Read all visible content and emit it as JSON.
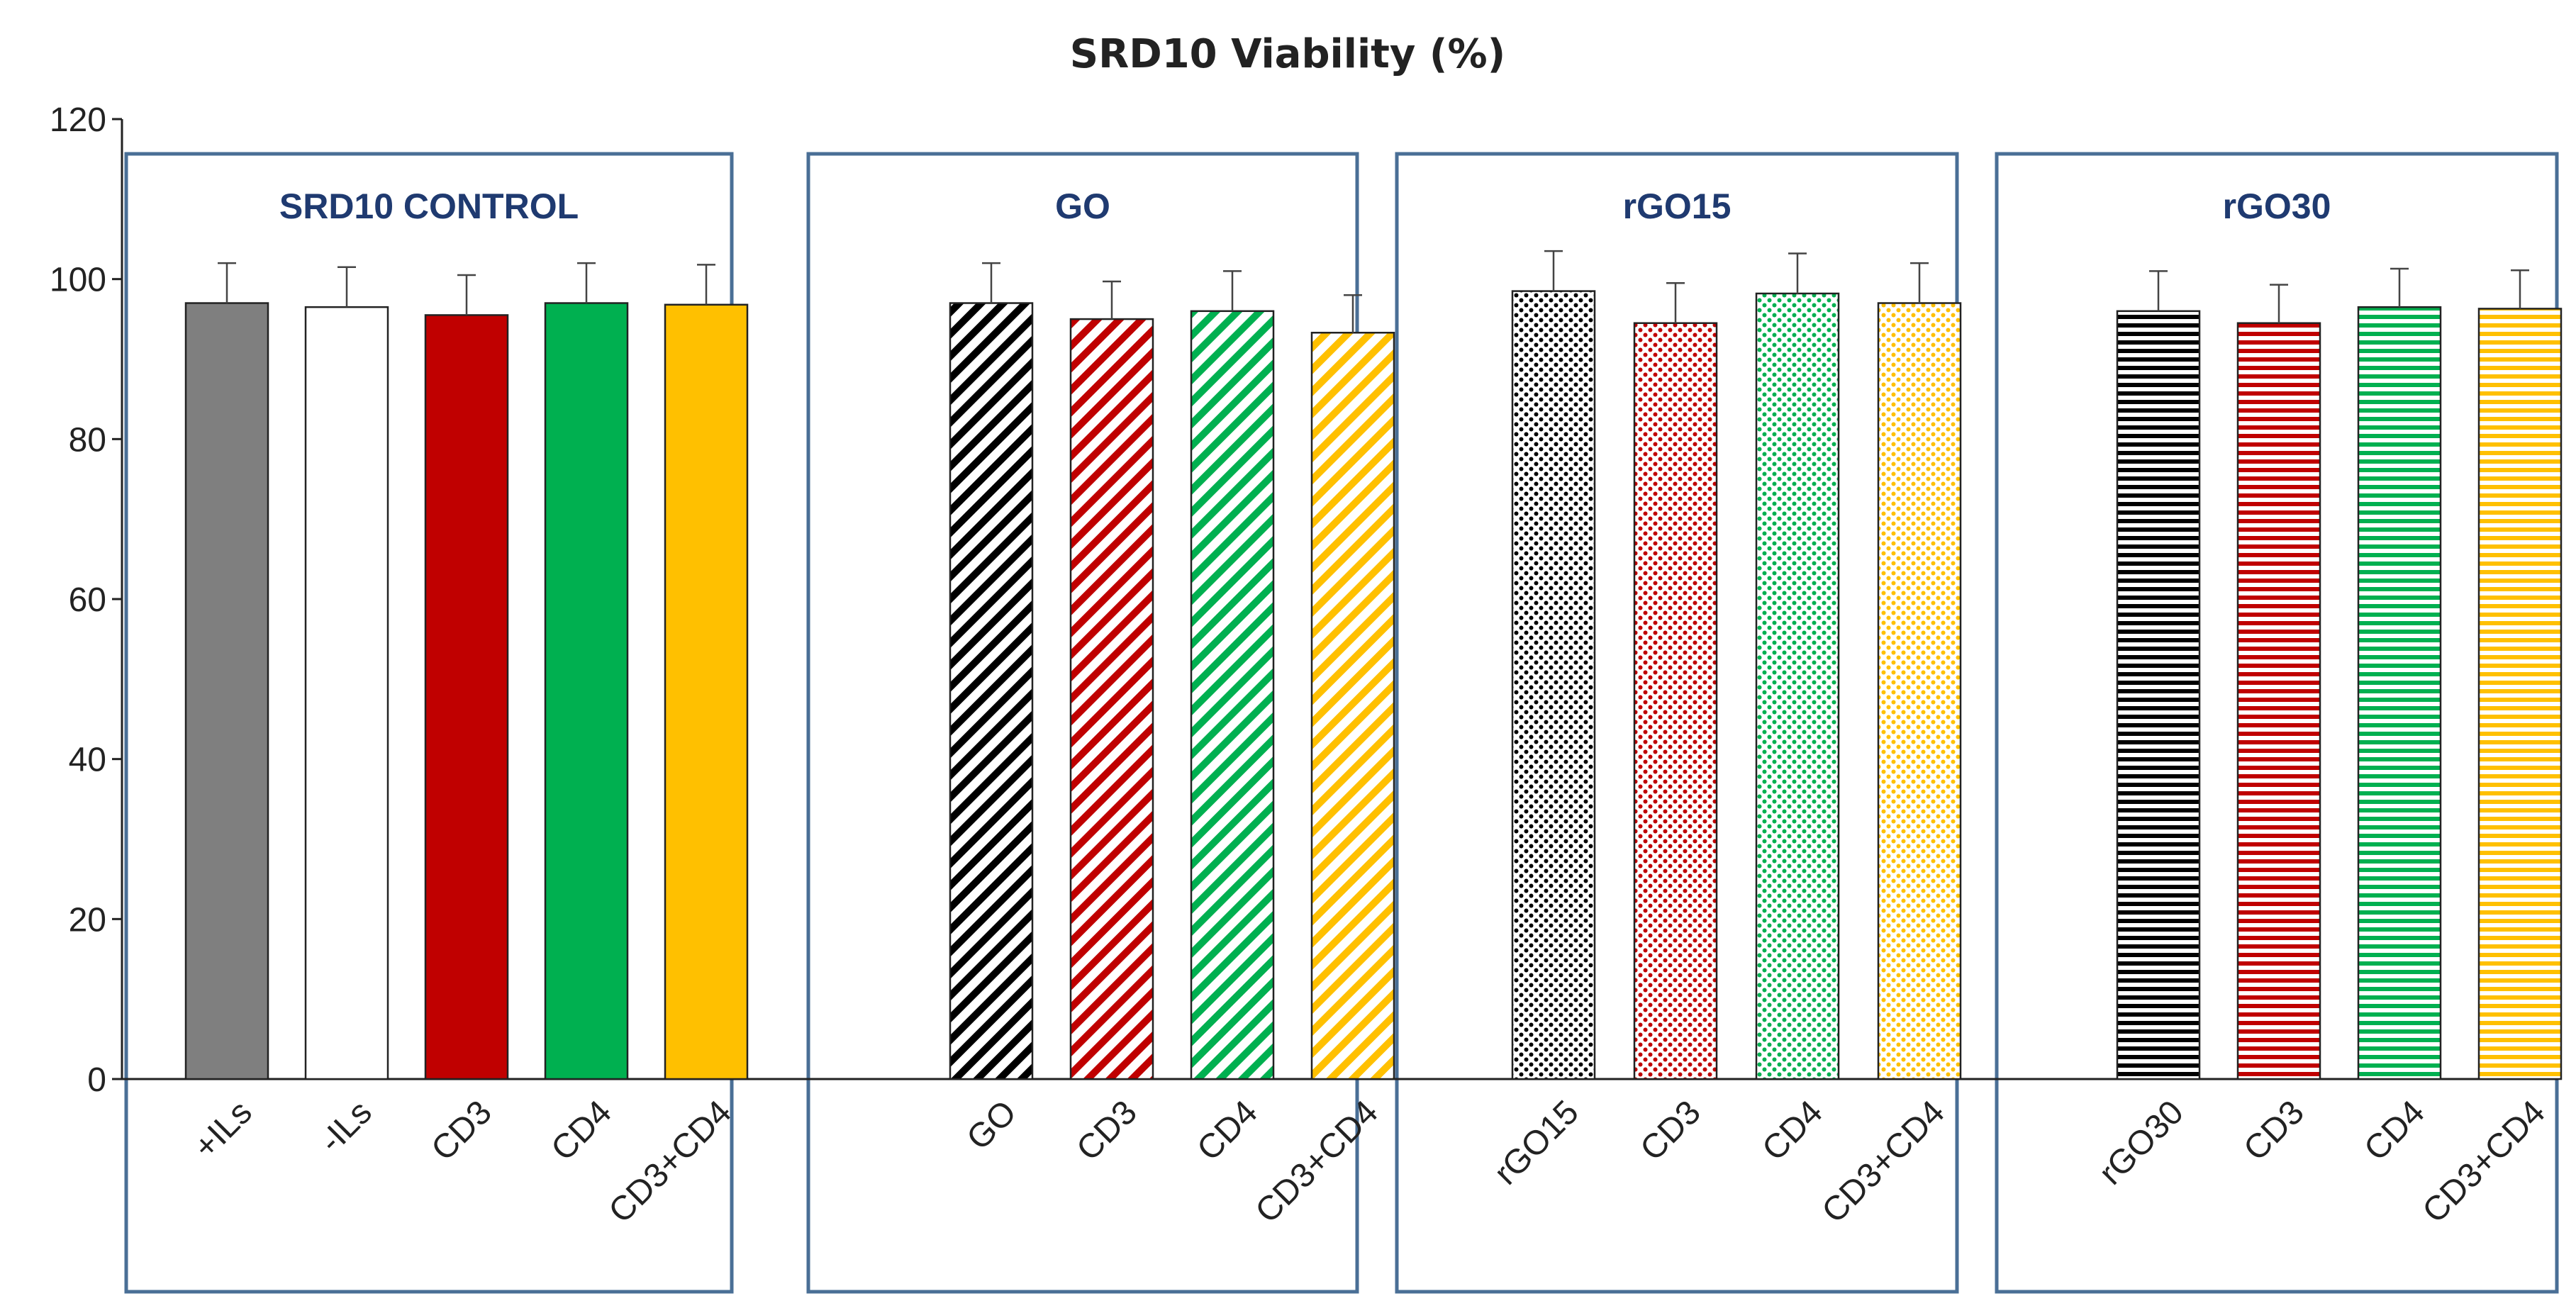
{
  "chart_data": {
    "type": "bar",
    "title": "SRD10 Viability (%)",
    "xlabel": "",
    "ylabel": "",
    "ylim": [
      0,
      120
    ],
    "yticks": [
      0,
      20,
      40,
      60,
      80,
      100,
      120
    ],
    "groups": [
      {
        "name": "SRD10 CONTROL",
        "bars": [
          {
            "label": "+ILs",
            "value": 97,
            "error": 5,
            "color": "#7f7f7f",
            "pattern": "solid"
          },
          {
            "label": "-ILs",
            "value": 96.5,
            "error": 5,
            "color": "#ffffff",
            "pattern": "solid"
          },
          {
            "label": "CD3",
            "value": 95.5,
            "error": 5,
            "color": "#c00000",
            "pattern": "solid"
          },
          {
            "label": "CD4",
            "value": 97,
            "error": 5,
            "color": "#00b050",
            "pattern": "solid"
          },
          {
            "label": "CD3+CD4",
            "value": 96.8,
            "error": 5,
            "color": "#ffc000",
            "pattern": "solid"
          }
        ]
      },
      {
        "name": "GO",
        "bars": [
          {
            "label": "GO",
            "value": 97,
            "error": 5,
            "color": "#000000",
            "pattern": "diagonal"
          },
          {
            "label": "CD3",
            "value": 95,
            "error": 4.7,
            "color": "#c00000",
            "pattern": "diagonal"
          },
          {
            "label": "CD4",
            "value": 96,
            "error": 5,
            "color": "#00b050",
            "pattern": "diagonal"
          },
          {
            "label": "CD3+CD4",
            "value": 93.3,
            "error": 4.7,
            "color": "#ffc000",
            "pattern": "diagonal"
          }
        ]
      },
      {
        "name": "rGO15",
        "bars": [
          {
            "label": "rGO15",
            "value": 98.5,
            "error": 5,
            "color": "#000000",
            "pattern": "dots"
          },
          {
            "label": "CD3",
            "value": 94.5,
            "error": 5,
            "color": "#c00000",
            "pattern": "dots"
          },
          {
            "label": "CD4",
            "value": 98.2,
            "error": 5,
            "color": "#00b050",
            "pattern": "dots"
          },
          {
            "label": "CD3+CD4",
            "value": 97,
            "error": 5,
            "color": "#ffc000",
            "pattern": "dots"
          }
        ]
      },
      {
        "name": "rGO30",
        "bars": [
          {
            "label": "rGO30",
            "value": 96,
            "error": 5,
            "color": "#000000",
            "pattern": "horizontal"
          },
          {
            "label": "CD3",
            "value": 94.5,
            "error": 4.8,
            "color": "#c00000",
            "pattern": "horizontal"
          },
          {
            "label": "CD4",
            "value": 96.5,
            "error": 4.8,
            "color": "#00b050",
            "pattern": "horizontal"
          },
          {
            "label": "CD3+CD4",
            "value": 96.3,
            "error": 4.8,
            "color": "#ffc000",
            "pattern": "horizontal"
          }
        ]
      }
    ]
  }
}
